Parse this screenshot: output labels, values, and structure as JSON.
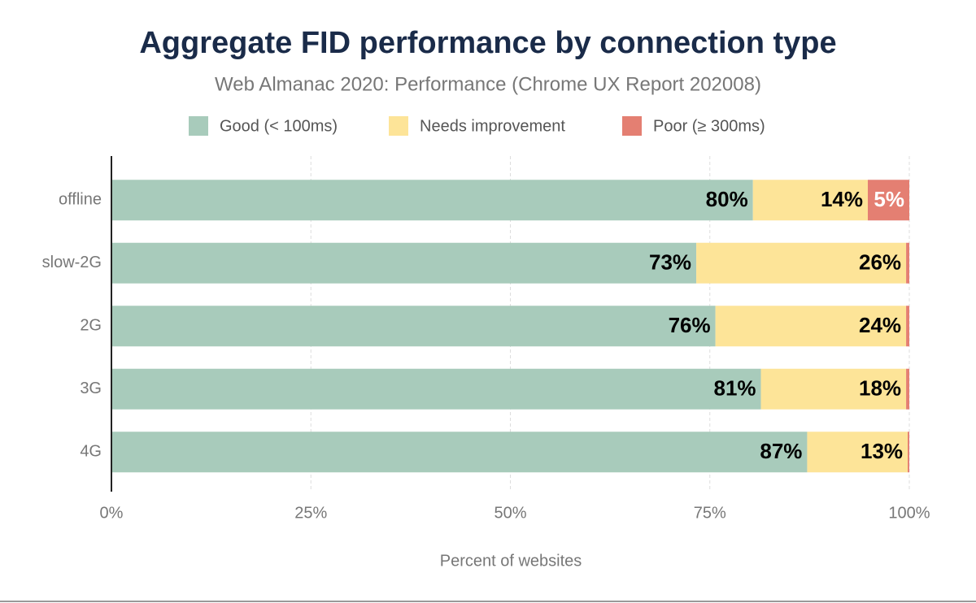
{
  "chart_data": {
    "type": "stacked_bar_horizontal",
    "title": "Aggregate FID performance by connection type",
    "subtitle": "Web Almanac 2020: Performance (Chrome UX Report 202008)",
    "xlabel": "Percent of websites",
    "categories": [
      "offline",
      "slow-2G",
      "2G",
      "3G",
      "4G"
    ],
    "series": [
      {
        "name": "Good (< 100ms)",
        "color": "#a8cbbb",
        "values": [
          80.4,
          73.3,
          75.7,
          81.4,
          87.2
        ],
        "value_labels": [
          "80%",
          "73%",
          "76%",
          "81%",
          "87%"
        ]
      },
      {
        "name": "Needs improvement",
        "color": "#fde498",
        "values": [
          14.4,
          26.3,
          23.9,
          18.2,
          12.6
        ],
        "value_labels": [
          "14%",
          "26%",
          "24%",
          "18%",
          "13%"
        ]
      },
      {
        "name": "Poor (≥ 300ms)",
        "color": "#e47f72",
        "values": [
          5.2,
          0.4,
          0.4,
          0.4,
          0.2
        ],
        "value_labels": [
          "5%",
          null,
          null,
          null,
          null
        ]
      }
    ],
    "xlim": [
      0,
      100
    ],
    "xticks": [
      {
        "value": 0,
        "label": "0%"
      },
      {
        "value": 25,
        "label": "25%"
      },
      {
        "value": 50,
        "label": "50%"
      },
      {
        "value": 75,
        "label": "75%"
      },
      {
        "value": 100,
        "label": "100%"
      }
    ],
    "grid": true,
    "legend": "top"
  }
}
